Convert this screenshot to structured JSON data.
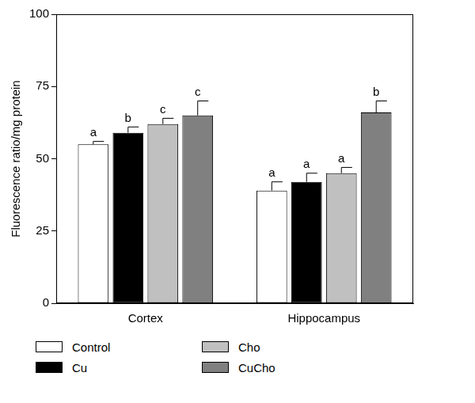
{
  "chart_data": {
    "type": "bar",
    "y_label": "Fluorescence ratio/mg protein",
    "categories": [
      "Cortex",
      "Hippocampus"
    ],
    "series": [
      {
        "name": "Control",
        "color": "#ffffff",
        "values": [
          55,
          39
        ],
        "errors": [
          1,
          3
        ],
        "annotations": [
          "a",
          "a"
        ]
      },
      {
        "name": "Cu",
        "color": "#000000",
        "values": [
          59,
          42
        ],
        "errors": [
          2,
          3
        ],
        "annotations": [
          "b",
          "a"
        ]
      },
      {
        "name": "Cho",
        "color": "#c0c0c0",
        "values": [
          62,
          45
        ],
        "errors": [
          2,
          2
        ],
        "annotations": [
          "c",
          "a"
        ]
      },
      {
        "name": "CuCho",
        "color": "#808080",
        "values": [
          65,
          66
        ],
        "errors": [
          5,
          4
        ],
        "annotations": [
          "c",
          "b"
        ]
      }
    ],
    "ylim": [
      0,
      100
    ],
    "yticks": [
      0,
      25,
      50,
      75,
      100
    ],
    "grid": false,
    "legend": "bottom"
  }
}
